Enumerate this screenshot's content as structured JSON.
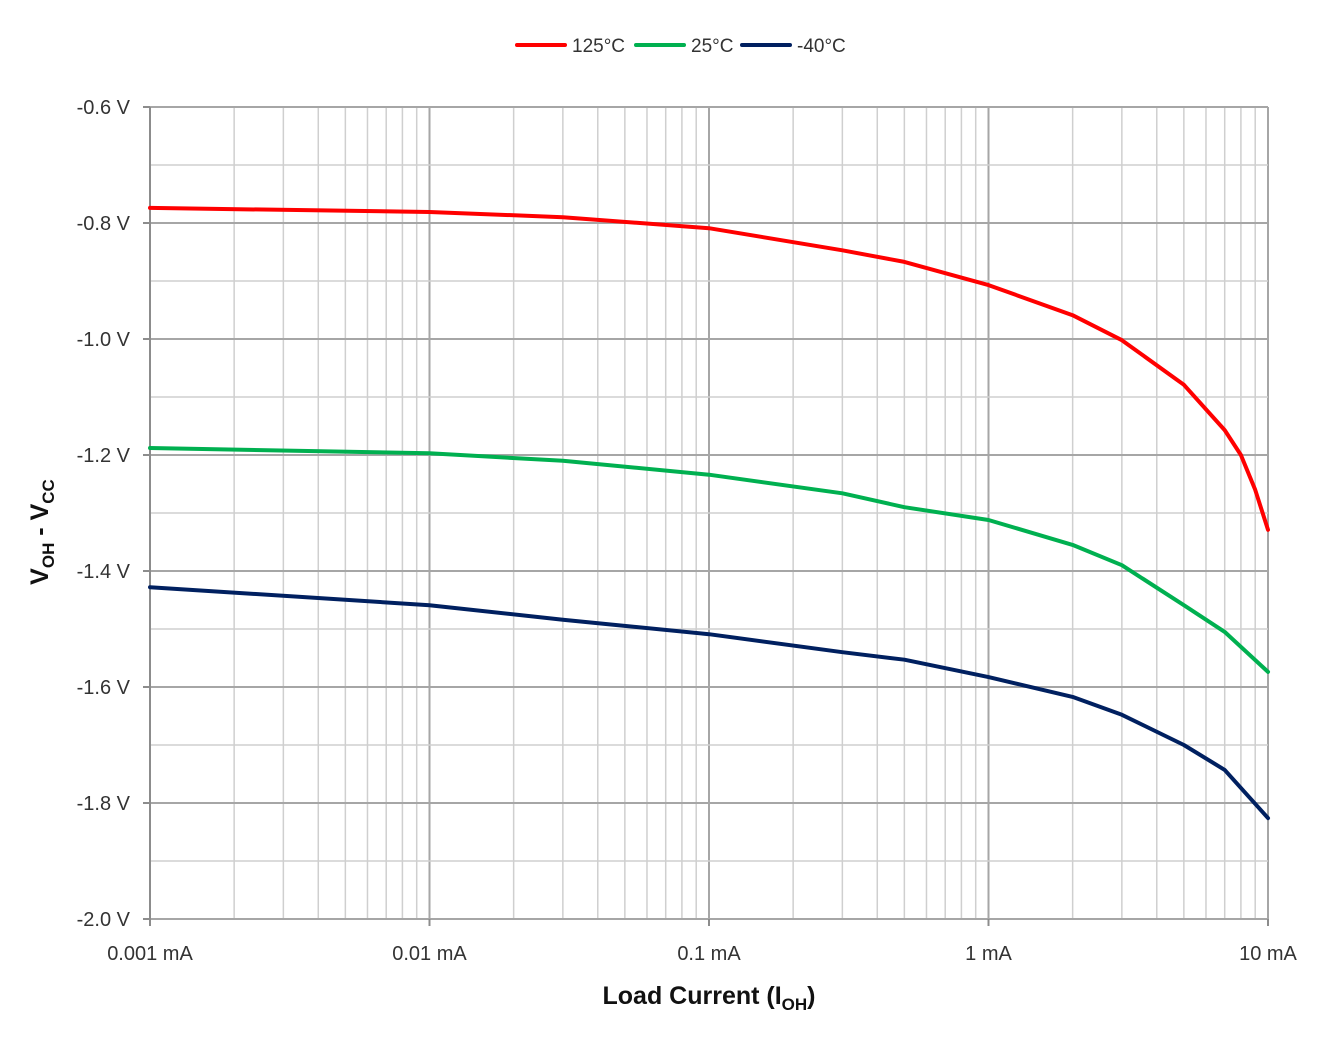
{
  "chart_data": {
    "type": "line",
    "title": "",
    "xlabel": {
      "text": "Load Current (I",
      "sub": "OH",
      "end": ")"
    },
    "ylabel": {
      "v1": "V",
      "sub1": "OH",
      "mid": " - V",
      "sub2": "CC"
    },
    "x_scale": "log",
    "xlim": [
      0.001,
      10
    ],
    "ylim": [
      -2.0,
      -0.6
    ],
    "grid": true,
    "legend_position": "top",
    "x_ticks": [
      {
        "value": 0.001,
        "label": "0.001 mA"
      },
      {
        "value": 0.01,
        "label": "0.01 mA"
      },
      {
        "value": 0.1,
        "label": "0.1 mA"
      },
      {
        "value": 1,
        "label": "1 mA"
      },
      {
        "value": 10,
        "label": "10 mA"
      }
    ],
    "y_ticks": [
      {
        "value": -0.6,
        "label": "-0.6 V"
      },
      {
        "value": -0.8,
        "label": "-0.8 V"
      },
      {
        "value": -1.0,
        "label": "-1.0 V"
      },
      {
        "value": -1.2,
        "label": "-1.2 V"
      },
      {
        "value": -1.4,
        "label": "-1.4 V"
      },
      {
        "value": -1.6,
        "label": "-1.6 V"
      },
      {
        "value": -1.8,
        "label": "-1.8 V"
      },
      {
        "value": -2.0,
        "label": "-2.0 V"
      }
    ],
    "series": [
      {
        "name": "125°C",
        "color": "#ff0000",
        "x": [
          0.001,
          0.01,
          0.03,
          0.1,
          0.3,
          0.5,
          1,
          2,
          3,
          5,
          7,
          8,
          9,
          10
        ],
        "y": [
          -0.774,
          -0.781,
          -0.79,
          -0.809,
          -0.847,
          -0.867,
          -0.907,
          -0.959,
          -1.002,
          -1.079,
          -1.157,
          -1.2,
          -1.26,
          -1.329
        ]
      },
      {
        "name": "25°C",
        "color": "#00b050",
        "x": [
          0.001,
          0.01,
          0.03,
          0.1,
          0.3,
          0.5,
          1,
          2,
          3,
          5,
          7,
          10
        ],
        "y": [
          -1.188,
          -1.197,
          -1.21,
          -1.234,
          -1.266,
          -1.29,
          -1.312,
          -1.355,
          -1.39,
          -1.459,
          -1.505,
          -1.574
        ]
      },
      {
        "name": "-40°C",
        "color": "#002060",
        "x": [
          0.001,
          0.01,
          0.03,
          0.1,
          0.3,
          0.5,
          1,
          2,
          3,
          5,
          7,
          10
        ],
        "y": [
          -1.428,
          -1.459,
          -1.484,
          -1.509,
          -1.54,
          -1.553,
          -1.583,
          -1.617,
          -1.648,
          -1.7,
          -1.743,
          -1.826
        ]
      }
    ]
  }
}
